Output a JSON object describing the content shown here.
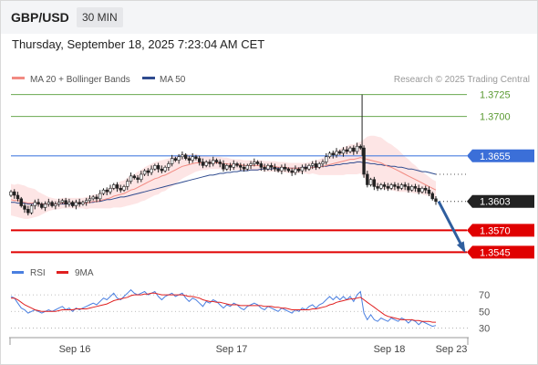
{
  "header": {
    "symbol": "GBP/USD",
    "timeframe": "30 MIN",
    "datetime": "Thursday, September 18, 2025 7:23:04 AM CET"
  },
  "legend": {
    "ma20": "MA 20 + Bollinger Bands",
    "ma50": "MA 50",
    "ma20_color": "#f28b82",
    "ma50_color": "#2f4b8f",
    "credit": "Research © 2025 Trading Central"
  },
  "rsi_legend": {
    "rsi": "RSI",
    "ma9": "9MA",
    "rsi_color": "#4a7fe0",
    "ma9_color": "#e02020"
  },
  "colors": {
    "up_candle": "#ffffff",
    "down_candle": "#222222",
    "green_level": "#6aa84f",
    "blue_level": "#4a7fe0",
    "red_level": "#e00000",
    "band_fill": "#fde0e0",
    "arrow": "#2f5e9e"
  },
  "chart_data": {
    "type": "candlestick",
    "ylim": [
      1.3535,
      1.3735
    ],
    "levels": [
      {
        "value": 1.3725,
        "label": "1.3725",
        "style": "green-line"
      },
      {
        "value": 1.37,
        "label": "1.3700",
        "style": "green-line"
      },
      {
        "value": 1.3655,
        "label": "1.3655",
        "style": "blue-line"
      },
      {
        "value": 1.3603,
        "label": "1.3603",
        "style": "current-price"
      },
      {
        "value": 1.357,
        "label": "1.3570",
        "style": "red-line"
      },
      {
        "value": 1.3545,
        "label": "1.3545",
        "style": "red-line"
      }
    ],
    "x_ticks": [
      "Sep 16",
      "Sep 17",
      "Sep 18",
      "Sep 23"
    ],
    "close": [
      1.3614,
      1.361,
      1.3606,
      1.3598,
      1.3594,
      1.359,
      1.3598,
      1.3602,
      1.36,
      1.3596,
      1.36,
      1.3602,
      1.3598,
      1.36,
      1.3602,
      1.3604,
      1.36,
      1.3602,
      1.3598,
      1.3602,
      1.36,
      1.3602,
      1.3604,
      1.3606,
      1.3608,
      1.3606,
      1.3612,
      1.3616,
      1.3614,
      1.3618,
      1.3622,
      1.3618,
      1.3616,
      1.362,
      1.3626,
      1.3632,
      1.363,
      1.3628,
      1.3634,
      1.3638,
      1.3636,
      1.364,
      1.3644,
      1.364,
      1.3638,
      1.3642,
      1.3646,
      1.3652,
      1.365,
      1.3654,
      1.3656,
      1.3652,
      1.365,
      1.3654,
      1.3652,
      1.3648,
      1.3644,
      1.3648,
      1.3646,
      1.365,
      1.3648,
      1.3646,
      1.364,
      1.3644,
      1.3642,
      1.3646,
      1.3644,
      1.3642,
      1.364,
      1.3644,
      1.3646,
      1.3648,
      1.3646,
      1.3642,
      1.364,
      1.3644,
      1.3642,
      1.364,
      1.3638,
      1.3642,
      1.364,
      1.3638,
      1.3636,
      1.364,
      1.3638,
      1.3642,
      1.364,
      1.3644,
      1.3646,
      1.3642,
      1.3646,
      1.3648,
      1.3654,
      1.3658,
      1.3656,
      1.366,
      1.3658,
      1.3662,
      1.366,
      1.3664,
      1.366,
      1.3666,
      1.3664,
      1.3634,
      1.3622,
      1.3628,
      1.362,
      1.3618,
      1.3622,
      1.362,
      1.3618,
      1.3622,
      1.362,
      1.3618,
      1.3622,
      1.362,
      1.3616,
      1.362,
      1.3618,
      1.3614,
      1.3618,
      1.3616,
      1.3612,
      1.3606,
      1.3603
    ],
    "ma20": [
      1.3605,
      1.3604,
      1.3604,
      1.3603,
      1.3602,
      1.3601,
      1.3601,
      1.3601,
      1.36,
      1.36,
      1.36,
      1.36,
      1.36,
      1.36,
      1.36,
      1.3601,
      1.3601,
      1.3601,
      1.3601,
      1.3601,
      1.3601,
      1.3601,
      1.3601,
      1.3602,
      1.3603,
      1.3603,
      1.3604,
      1.3605,
      1.3606,
      1.3607,
      1.3609,
      1.361,
      1.3611,
      1.3612,
      1.3614,
      1.3616,
      1.3617,
      1.3619,
      1.3621,
      1.3623,
      1.3625,
      1.3627,
      1.3629,
      1.363,
      1.3632,
      1.3633,
      1.3635,
      1.3637,
      1.3639,
      1.3641,
      1.3643,
      1.3644,
      1.3645,
      1.3646,
      1.3647,
      1.3647,
      1.3647,
      1.3647,
      1.3647,
      1.3647,
      1.3647,
      1.3647,
      1.3646,
      1.3646,
      1.3645,
      1.3645,
      1.3645,
      1.3645,
      1.3644,
      1.3644,
      1.3644,
      1.3644,
      1.3644,
      1.3644,
      1.3643,
      1.3643,
      1.3643,
      1.3643,
      1.3642,
      1.3642,
      1.3642,
      1.3641,
      1.3641,
      1.3641,
      1.3641,
      1.3641,
      1.3641,
      1.3641,
      1.3642,
      1.3642,
      1.3642,
      1.3643,
      1.3644,
      1.3645,
      1.3646,
      1.3647,
      1.3648,
      1.3649,
      1.365,
      1.3651,
      1.3651,
      1.3652,
      1.3653,
      1.3652,
      1.3651,
      1.365,
      1.3649,
      1.3648,
      1.3647,
      1.3645,
      1.3643,
      1.3642,
      1.364,
      1.3638,
      1.3636,
      1.3634,
      1.3632,
      1.363,
      1.3628,
      1.3626,
      1.3624,
      1.3622,
      1.362,
      1.3618,
      1.3616
    ],
    "ma50": [
      1.3602,
      1.3602,
      1.3601,
      1.3601,
      1.3601,
      1.36,
      1.36,
      1.36,
      1.36,
      1.36,
      1.36,
      1.36,
      1.36,
      1.36,
      1.36,
      1.36,
      1.36,
      1.36,
      1.36,
      1.36,
      1.3601,
      1.3601,
      1.3601,
      1.3602,
      1.3602,
      1.3603,
      1.3603,
      1.3604,
      1.3605,
      1.3605,
      1.3606,
      1.3607,
      1.3608,
      1.3608,
      1.3609,
      1.361,
      1.3611,
      1.3612,
      1.3613,
      1.3614,
      1.3615,
      1.3616,
      1.3617,
      1.3618,
      1.3619,
      1.362,
      1.3621,
      1.3622,
      1.3623,
      1.3624,
      1.3625,
      1.3626,
      1.3627,
      1.3628,
      1.3629,
      1.363,
      1.3631,
      1.3632,
      1.3633,
      1.3633,
      1.3634,
      1.3635,
      1.3635,
      1.3636,
      1.3636,
      1.3637,
      1.3637,
      1.3638,
      1.3638,
      1.3638,
      1.3639,
      1.3639,
      1.3639,
      1.364,
      1.364,
      1.364,
      1.364,
      1.3641,
      1.3641,
      1.3641,
      1.3641,
      1.3641,
      1.3641,
      1.3641,
      1.3641,
      1.3642,
      1.3642,
      1.3642,
      1.3642,
      1.3642,
      1.3643,
      1.3643,
      1.3643,
      1.3644,
      1.3644,
      1.3645,
      1.3645,
      1.3646,
      1.3646,
      1.3647,
      1.3647,
      1.3648,
      1.3648,
      1.3647,
      1.3647,
      1.3646,
      1.3646,
      1.3645,
      1.3645,
      1.3644,
      1.3644,
      1.3643,
      1.3643,
      1.3642,
      1.3642,
      1.3641,
      1.364,
      1.364,
      1.3639,
      1.3638,
      1.3637,
      1.3637,
      1.3636,
      1.3635,
      1.3634
    ],
    "band_width": [
      0.0018,
      0.0018,
      0.0019,
      0.0019,
      0.0019,
      0.0018,
      0.0017,
      0.0016,
      0.0014,
      0.0012,
      0.001,
      0.0008,
      0.0007,
      0.0006,
      0.0006,
      0.0006,
      0.0006,
      0.0006,
      0.0006,
      0.0006,
      0.0006,
      0.0006,
      0.0007,
      0.0007,
      0.0008,
      0.0008,
      0.0009,
      0.001,
      0.0011,
      0.0012,
      0.0013,
      0.0014,
      0.0015,
      0.0015,
      0.0016,
      0.0017,
      0.0017,
      0.0018,
      0.0018,
      0.0019,
      0.0019,
      0.0019,
      0.0019,
      0.0019,
      0.0018,
      0.0018,
      0.0017,
      0.0017,
      0.0016,
      0.0015,
      0.0014,
      0.0013,
      0.0012,
      0.0011,
      0.001,
      0.0009,
      0.0008,
      0.0008,
      0.0007,
      0.0007,
      0.0007,
      0.0007,
      0.0007,
      0.0007,
      0.0007,
      0.0006,
      0.0006,
      0.0006,
      0.0006,
      0.0006,
      0.0006,
      0.0006,
      0.0006,
      0.0006,
      0.0006,
      0.0006,
      0.0006,
      0.0006,
      0.0006,
      0.0006,
      0.0006,
      0.0006,
      0.0006,
      0.0006,
      0.0006,
      0.0006,
      0.0006,
      0.0007,
      0.0007,
      0.0008,
      0.0009,
      0.001,
      0.0011,
      0.0012,
      0.0013,
      0.0014,
      0.0015,
      0.0016,
      0.0016,
      0.0017,
      0.0017,
      0.0018,
      0.0018,
      0.0022,
      0.0026,
      0.0028,
      0.0029,
      0.0029,
      0.0029,
      0.0028,
      0.0027,
      0.0026,
      0.0025,
      0.0024,
      0.0022,
      0.002,
      0.0019,
      0.0017,
      0.0016,
      0.0014,
      0.0013,
      0.0012,
      0.0011,
      0.001,
      0.001
    ],
    "forecast": {
      "from": 1.3603,
      "to": 1.3545
    },
    "rsi": {
      "ylim": [
        25,
        80
      ],
      "ticks": [
        70,
        50,
        30
      ],
      "rsi": [
        68,
        66,
        60,
        54,
        52,
        48,
        50,
        52,
        50,
        48,
        50,
        52,
        50,
        52,
        54,
        56,
        52,
        54,
        50,
        54,
        52,
        54,
        56,
        58,
        60,
        58,
        62,
        66,
        64,
        68,
        72,
        66,
        64,
        68,
        72,
        76,
        72,
        70,
        72,
        74,
        70,
        72,
        74,
        68,
        64,
        68,
        70,
        72,
        68,
        70,
        72,
        66,
        62,
        66,
        64,
        60,
        56,
        62,
        60,
        64,
        62,
        58,
        54,
        58,
        56,
        60,
        58,
        54,
        52,
        56,
        58,
        60,
        58,
        54,
        52,
        56,
        54,
        52,
        50,
        54,
        52,
        50,
        48,
        52,
        50,
        54,
        52,
        56,
        58,
        54,
        58,
        60,
        64,
        68,
        64,
        68,
        64,
        68,
        64,
        68,
        62,
        70,
        74,
        48,
        40,
        46,
        40,
        38,
        42,
        40,
        38,
        42,
        40,
        38,
        42,
        40,
        36,
        40,
        38,
        34,
        38,
        36,
        34,
        32,
        33
      ],
      "ma9": [
        66,
        66,
        64,
        61,
        58,
        56,
        54,
        52,
        51,
        50,
        50,
        50,
        50,
        50,
        51,
        52,
        52,
        52,
        52,
        53,
        53,
        53,
        53,
        54,
        55,
        56,
        57,
        58,
        59,
        61,
        63,
        64,
        65,
        66,
        67,
        69,
        70,
        70,
        70,
        71,
        71,
        72,
        72,
        71,
        70,
        70,
        70,
        70,
        70,
        70,
        70,
        69,
        68,
        68,
        67,
        66,
        64,
        63,
        62,
        62,
        61,
        61,
        60,
        59,
        58,
        58,
        58,
        57,
        57,
        57,
        57,
        57,
        57,
        57,
        56,
        56,
        56,
        55,
        55,
        54,
        54,
        53,
        52,
        52,
        52,
        52,
        52,
        52,
        53,
        53,
        54,
        55,
        56,
        58,
        59,
        61,
        62,
        63,
        64,
        65,
        65,
        66,
        67,
        64,
        61,
        58,
        55,
        52,
        49,
        46,
        44,
        43,
        42,
        41,
        40,
        40,
        40,
        40,
        39,
        39,
        38,
        38,
        38,
        37,
        37
      ]
    }
  }
}
